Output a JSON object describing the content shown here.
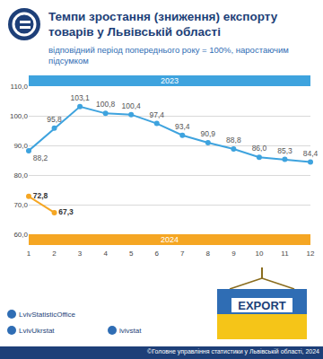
{
  "header": {
    "title": "Темпи зростання (зниження) експорту товарів у Львівській області",
    "subtitle": "відповідний період попереднього року = 100%, наростаючим підсумком"
  },
  "chart_data": {
    "type": "line",
    "x": [
      1,
      2,
      3,
      4,
      5,
      6,
      7,
      8,
      9,
      10,
      11,
      12
    ],
    "xlim": [
      1,
      12
    ],
    "xticks": [
      1,
      2,
      3,
      4,
      5,
      6,
      7,
      8,
      9,
      10,
      11,
      12
    ],
    "ylim": [
      60,
      110
    ],
    "yticks": [
      {
        "value": 60,
        "label": "60,0"
      },
      {
        "value": 70,
        "label": "70,0"
      },
      {
        "value": 80,
        "label": "80,0"
      },
      {
        "value": 90,
        "label": "90,0"
      },
      {
        "value": 100,
        "label": "100,0"
      },
      {
        "value": 110,
        "label": "110,0"
      }
    ],
    "grid": true,
    "data_labels": true,
    "series": [
      {
        "name": "2023",
        "color": "#3ea3de",
        "marker": "circle",
        "values": [
          88.2,
          95.8,
          103.1,
          100.8,
          100.4,
          97.4,
          93.4,
          90.9,
          88.8,
          86.0,
          85.3,
          84.4
        ],
        "value_labels": [
          "88,2",
          "95,8",
          "103,1",
          "100,8",
          "100,4",
          "97,4",
          "93,4",
          "90,9",
          "88,8",
          "86,0",
          "85,3",
          "84,4"
        ]
      },
      {
        "name": "2024",
        "color": "#f5a623",
        "marker": "circle",
        "values": [
          72.8,
          67.3,
          null,
          null,
          null,
          null,
          null,
          null,
          null,
          null,
          null,
          null
        ],
        "value_labels": [
          "72,8",
          "67,3",
          null,
          null,
          null,
          null,
          null,
          null,
          null,
          null,
          null,
          null
        ]
      }
    ]
  },
  "footer": {
    "facebook": "LvivStatisticOffice",
    "twitter": "LvivUkrstat",
    "instagram": "lvivstat",
    "image_text": "EXPORT",
    "copyright": "©Головне управління статистики у Львівській області, 2024"
  }
}
